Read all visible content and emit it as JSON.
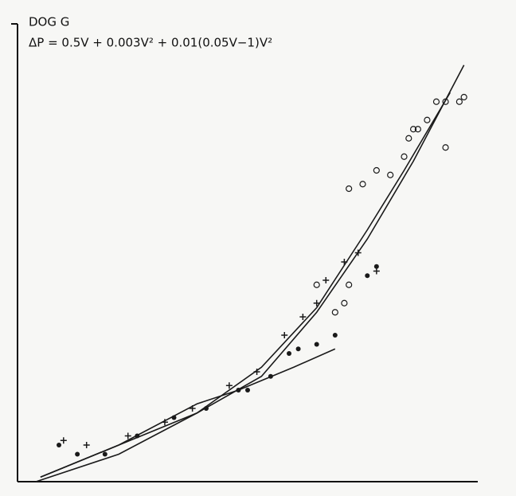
{
  "chart_data": {
    "type": "scatter",
    "title": "DOG G",
    "subtitle": "ΔP = 0.5V + 0.003V² + 0.01(0.05V−1)V²",
    "xlim": [
      0,
      100
    ],
    "ylim": [
      0,
      100
    ],
    "color": "#1a1a1a",
    "series": [
      {
        "marker": "circle",
        "x": [
          72,
          75,
          78,
          81,
          84,
          85,
          87,
          89,
          91,
          93,
          96,
          97,
          93,
          86,
          71,
          72,
          69,
          65
        ],
        "values": [
          64,
          65,
          68,
          67,
          71,
          75,
          77,
          79,
          83,
          83,
          83,
          84,
          73,
          77,
          39,
          43,
          37,
          43
        ]
      },
      {
        "marker": "cross",
        "x": [
          10,
          15,
          24,
          32,
          38,
          46,
          52,
          58,
          62,
          65,
          67,
          71,
          74,
          78
        ],
        "values": [
          9,
          8,
          10,
          13,
          16,
          21,
          24,
          32,
          36,
          39,
          44,
          48,
          50,
          46
        ]
      },
      {
        "marker": "dot",
        "x": [
          9,
          13,
          19,
          26,
          34,
          41,
          48,
          50,
          55,
          59,
          61,
          65,
          69,
          76,
          78
        ],
        "values": [
          8,
          6,
          6,
          10,
          14,
          16,
          20,
          20,
          23,
          28,
          29,
          30,
          32,
          45,
          47
        ]
      }
    ],
    "lines": [
      {
        "x": [
          4,
          22,
          39,
          53,
          65,
          76,
          86,
          97
        ],
        "values": [
          0,
          6,
          15,
          23,
          37,
          53,
          70,
          91
        ]
      },
      {
        "x": [
          5,
          22,
          39,
          53,
          65,
          76,
          84,
          94
        ],
        "values": [
          1,
          8,
          15,
          25,
          38,
          55,
          68,
          85
        ]
      },
      {
        "x": [
          5,
          22,
          39,
          48,
          60,
          69
        ],
        "values": [
          1,
          8,
          17,
          20,
          25,
          29
        ]
      }
    ]
  }
}
